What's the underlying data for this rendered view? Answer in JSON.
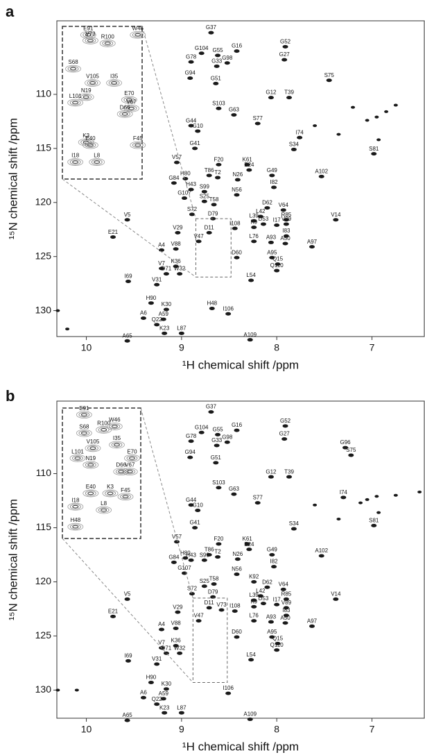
{
  "chart_data": [
    {
      "type": "scatter",
      "panel": "a",
      "x_label": "¹H chemical shift /ppm",
      "y_label": "¹⁵N chemical shift /ppm",
      "xlim": [
        10.31,
        6.45
      ],
      "ylim": [
        103.2,
        132.4
      ],
      "xticks": [
        10,
        9,
        8,
        7
      ],
      "yticks": [
        110,
        115,
        120,
        125,
        130
      ],
      "color": "#1a1a1a",
      "peaks": {
        "names": [
          "G37",
          "G52",
          "G104",
          "G55",
          "G16",
          "G78",
          "G33",
          "G98",
          "G27",
          "S75",
          "G94",
          "G51",
          "G12",
          "T39",
          "S103",
          "G63",
          "S77",
          "G44",
          "G10",
          "G41",
          "I74",
          "S34",
          "S81",
          "F20",
          "K61",
          "E24",
          "G49",
          "V57",
          "T86",
          "T2",
          "N26",
          "G84",
          "H80",
          "A102",
          "I82",
          "H43",
          "S99",
          "N56",
          "G107",
          "S25",
          "T58",
          "D62",
          "V64",
          "S72",
          "D79",
          "L39",
          "L42",
          "R85",
          "V5",
          "V14",
          "D53",
          "I17",
          "V89",
          "I108",
          "D11",
          "K9",
          "V29",
          "I83",
          "V47",
          "E21",
          "L76",
          "A93",
          "A50",
          "A97",
          "A4",
          "V88",
          "A95",
          "Q15",
          "D60",
          "K36",
          "V7",
          "W32",
          "Q110",
          "D71",
          "I69",
          "L54",
          "V31",
          "H90",
          "K30",
          "H48",
          "I106",
          "A6",
          "A59",
          "Q22",
          "K23",
          "L87",
          "A65",
          "A109"
        ],
        "x": [
          8.69,
          7.91,
          8.79,
          8.62,
          8.42,
          8.9,
          8.63,
          8.52,
          7.92,
          7.45,
          8.91,
          8.64,
          8.06,
          7.87,
          8.61,
          8.45,
          8.2,
          8.9,
          8.83,
          8.86,
          7.76,
          7.82,
          6.98,
          8.61,
          8.31,
          8.29,
          8.05,
          9.05,
          8.71,
          8.62,
          8.41,
          9.08,
          8.96,
          7.53,
          8.03,
          8.9,
          8.76,
          8.42,
          8.97,
          8.76,
          8.66,
          8.1,
          7.93,
          8.89,
          8.67,
          8.24,
          8.17,
          7.9,
          9.57,
          7.38,
          8.14,
          8.0,
          7.9,
          8.44,
          8.71,
          8.24,
          9.04,
          7.9,
          8.82,
          9.72,
          8.24,
          8.06,
          7.91,
          7.63,
          9.21,
          9.06,
          8.05,
          7.99,
          8.42,
          9.06,
          9.21,
          9.02,
          8.0,
          9.16,
          9.56,
          8.27,
          9.26,
          9.32,
          9.16,
          8.68,
          8.51,
          9.4,
          9.19,
          9.26,
          9.18,
          9.0,
          9.57,
          8.28
        ],
        "y": [
          104.3,
          105.6,
          106.2,
          106.4,
          106.0,
          107.0,
          107.4,
          107.1,
          106.8,
          108.7,
          108.5,
          109.0,
          110.3,
          110.3,
          111.3,
          111.9,
          112.7,
          112.9,
          113.4,
          115.0,
          114.0,
          115.1,
          115.5,
          116.5,
          116.5,
          117.0,
          117.5,
          116.3,
          117.5,
          117.7,
          117.9,
          118.2,
          117.8,
          117.6,
          118.6,
          118.8,
          119.0,
          119.3,
          119.6,
          119.9,
          120.2,
          120.5,
          120.7,
          121.1,
          121.5,
          121.7,
          121.3,
          121.6,
          121.6,
          121.6,
          122.0,
          122.1,
          122.0,
          122.4,
          122.8,
          122.3,
          122.8,
          123.1,
          123.6,
          123.2,
          123.6,
          123.7,
          123.8,
          124.1,
          124.4,
          124.3,
          125.1,
          125.7,
          125.1,
          125.9,
          126.1,
          126.6,
          126.3,
          126.6,
          127.3,
          127.2,
          127.6,
          129.3,
          129.9,
          129.8,
          130.3,
          130.7,
          130.8,
          131.3,
          132.1,
          132.1,
          132.8,
          132.7
        ]
      },
      "unassigned": {
        "x": [
          7.2,
          6.95,
          6.75,
          7.6,
          7.35,
          6.93,
          10.3,
          10.2,
          7.05,
          6.85
        ],
        "y": [
          111.2,
          112.1,
          111.0,
          112.9,
          113.7,
          114.2,
          130.0,
          131.7,
          112.4,
          111.6
        ]
      },
      "inset": {
        "xlim": [
          8.85,
          8.48
        ],
        "ylim": [
          121.5,
          126.9
        ],
        "names": [
          "E91",
          "W46",
          "R100",
          "V73",
          "S68",
          "V105",
          "I35",
          "N19",
          "L101",
          "E70",
          "V67",
          "D66",
          "K3",
          "E40",
          "F45",
          "I18",
          "L8"
        ],
        "x": [
          8.73,
          8.5,
          8.64,
          8.72,
          8.8,
          8.71,
          8.61,
          8.74,
          8.79,
          8.54,
          8.53,
          8.56,
          8.74,
          8.72,
          8.5,
          8.79,
          8.69
        ],
        "y": [
          121.8,
          121.8,
          122.1,
          122.0,
          123.0,
          123.5,
          123.5,
          124.0,
          124.2,
          124.1,
          124.4,
          124.6,
          125.6,
          125.7,
          125.7,
          126.3,
          126.3
        ]
      }
    },
    {
      "type": "scatter",
      "panel": "b",
      "x_label": "¹H chemical shift /ppm",
      "y_label": "¹⁵N chemical shift /ppm",
      "xlim": [
        10.31,
        6.45
      ],
      "ylim": [
        103.3,
        132.6
      ],
      "xticks": [
        10,
        9,
        8,
        7
      ],
      "yticks": [
        110,
        115,
        120,
        125,
        130
      ],
      "color": "#1a1a1a",
      "peaks": {
        "names": [
          "G37",
          "G52",
          "G104",
          "G55",
          "G16",
          "G78",
          "G33",
          "G98",
          "G27",
          "G96",
          "S75",
          "G94",
          "G51",
          "G12",
          "T39",
          "S103",
          "G63",
          "S77",
          "G44",
          "G10",
          "G41",
          "I74",
          "S34",
          "S81",
          "F20",
          "K61",
          "E24",
          "G49",
          "V57",
          "T86",
          "S99",
          "T2",
          "N26",
          "G84",
          "H80",
          "H43",
          "A102",
          "I82",
          "G107",
          "N56",
          "T58",
          "S25",
          "K92",
          "D62",
          "V64",
          "S72",
          "D79",
          "L39",
          "L42",
          "R85",
          "D53",
          "I17",
          "V5",
          "V14",
          "D11",
          "V73",
          "V29",
          "I108",
          "V89",
          "K9",
          "I83",
          "E21",
          "V47",
          "A50",
          "L76",
          "A93",
          "A97",
          "A4",
          "V88",
          "Q15",
          "K36",
          "D60",
          "A95",
          "Q110",
          "D71",
          "V7",
          "W32",
          "I69",
          "V31",
          "L54",
          "H90",
          "I106",
          "K30",
          "A6",
          "A59",
          "Q22",
          "K23",
          "L87",
          "A65",
          "A109"
        ],
        "x": [
          8.69,
          7.91,
          8.79,
          8.62,
          8.42,
          8.9,
          8.63,
          8.52,
          7.92,
          7.28,
          7.22,
          8.91,
          8.64,
          8.06,
          7.87,
          8.61,
          8.45,
          8.2,
          8.9,
          8.83,
          8.86,
          7.3,
          7.82,
          6.98,
          8.61,
          8.31,
          8.29,
          8.05,
          9.05,
          8.71,
          8.76,
          8.62,
          8.41,
          9.08,
          8.96,
          8.9,
          7.53,
          8.03,
          8.97,
          8.42,
          8.66,
          8.76,
          8.24,
          8.1,
          7.93,
          8.89,
          8.67,
          8.24,
          8.17,
          7.9,
          8.14,
          8.0,
          9.57,
          7.38,
          8.71,
          8.58,
          9.04,
          8.44,
          7.9,
          8.24,
          7.9,
          9.72,
          8.82,
          7.91,
          8.24,
          8.06,
          7.63,
          9.21,
          9.06,
          7.99,
          9.06,
          8.42,
          8.05,
          8.0,
          9.16,
          9.21,
          9.02,
          9.56,
          9.26,
          8.27,
          9.32,
          8.51,
          9.16,
          9.4,
          9.19,
          9.26,
          9.18,
          9.0,
          9.57,
          8.28
        ],
        "y": [
          104.3,
          105.6,
          106.2,
          106.4,
          106.0,
          107.0,
          107.4,
          107.1,
          106.8,
          107.6,
          108.3,
          108.5,
          109.0,
          110.3,
          110.3,
          111.3,
          111.9,
          112.7,
          112.9,
          113.4,
          115.0,
          112.2,
          115.1,
          114.8,
          116.5,
          116.5,
          117.0,
          117.5,
          116.3,
          117.5,
          118.0,
          117.7,
          117.9,
          118.2,
          117.8,
          118.0,
          117.6,
          118.6,
          119.2,
          119.3,
          120.2,
          120.4,
          120.0,
          120.5,
          120.7,
          121.1,
          121.4,
          121.7,
          121.3,
          121.6,
          122.0,
          122.1,
          121.6,
          121.6,
          122.4,
          122.6,
          122.8,
          122.7,
          122.4,
          122.3,
          123.1,
          123.2,
          123.6,
          123.8,
          123.6,
          123.7,
          124.1,
          124.4,
          124.3,
          125.7,
          125.9,
          125.1,
          125.1,
          126.3,
          126.6,
          126.1,
          126.6,
          127.3,
          127.6,
          127.2,
          129.3,
          130.3,
          129.9,
          130.7,
          130.8,
          131.3,
          132.1,
          132.1,
          132.8,
          132.7
        ]
      },
      "unassigned": {
        "x": [
          7.12,
          6.95,
          6.75,
          6.5,
          7.6,
          7.35,
          6.93,
          10.3,
          10.1,
          7.05
        ],
        "y": [
          112.7,
          112.1,
          112.0,
          111.7,
          112.9,
          114.2,
          113.6,
          130.0,
          130.0,
          112.4
        ]
      },
      "inset": {
        "xlim": [
          8.88,
          8.52
        ],
        "ylim": [
          121.5,
          129.3
        ],
        "names": [
          "E91",
          "S68",
          "R100",
          "W46",
          "I35",
          "V105",
          "L101",
          "N19",
          "E70",
          "D66",
          "V67",
          "K3",
          "E40",
          "F45",
          "I18",
          "L8",
          "H48"
        ],
        "x": [
          8.78,
          8.78,
          8.69,
          8.64,
          8.63,
          8.74,
          8.81,
          8.75,
          8.56,
          8.61,
          8.57,
          8.66,
          8.75,
          8.59,
          8.82,
          8.69,
          8.82
        ],
        "y": [
          121.9,
          123.0,
          122.8,
          122.6,
          123.7,
          123.9,
          124.5,
          124.9,
          124.5,
          125.3,
          125.3,
          126.6,
          126.6,
          126.8,
          127.4,
          127.6,
          128.6
        ]
      }
    }
  ]
}
